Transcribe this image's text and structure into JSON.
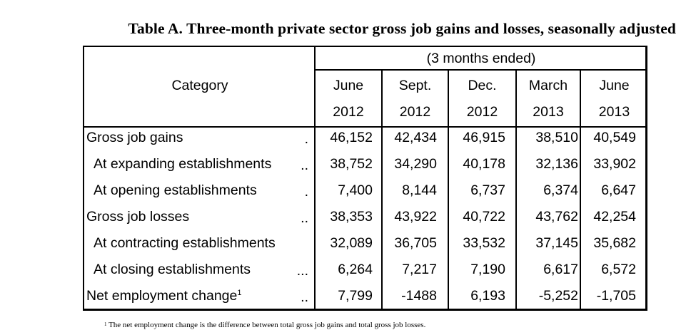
{
  "title": "Table A.  Three-month private sector gross job gains and losses, seasonally adjusted",
  "header": {
    "span_label": "(3 months ended)",
    "category_label": "Category",
    "periods": [
      {
        "month": "June",
        "year": "2012"
      },
      {
        "month": "Sept.",
        "year": "2012"
      },
      {
        "month": "Dec.",
        "year": "2012"
      },
      {
        "month": "March",
        "year": "2013"
      },
      {
        "month": "June",
        "year": "2013"
      }
    ]
  },
  "rows": [
    {
      "label": "Gross job gains",
      "dots": ".",
      "values": [
        "46,152",
        "42,434",
        "46,915",
        "38,510",
        "40,549"
      ]
    },
    {
      "label": "At expanding establishments",
      "dots": "..",
      "values": [
        "38,752",
        "34,290",
        "40,178",
        "32,136",
        "33,902"
      ]
    },
    {
      "label": "At opening establishments",
      "dots": ".",
      "values": [
        "7,400",
        "8,144",
        "6,737",
        "6,374",
        "6,647"
      ]
    },
    {
      "label": "Gross job losses",
      "dots": "..",
      "values": [
        "38,353",
        "43,922",
        "40,722",
        "43,762",
        "42,254"
      ]
    },
    {
      "label": "At contracting establishments",
      "dots": "",
      "values": [
        "32,089",
        "36,705",
        "33,532",
        "37,145",
        "35,682"
      ]
    },
    {
      "label": "At closing establishments",
      "dots": "...",
      "values": [
        "6,264",
        "7,217",
        "7,190",
        "6,617",
        "6,572"
      ]
    },
    {
      "label": "Net employment change",
      "sup": "1",
      "dots": "..",
      "values": [
        "7,799",
        "-1488",
        "6,193",
        "-5,252",
        "-1,705"
      ]
    }
  ],
  "footnote": {
    "marker": "1",
    "text": "The net employment change is the difference between total gross job gains and total gross job losses."
  }
}
